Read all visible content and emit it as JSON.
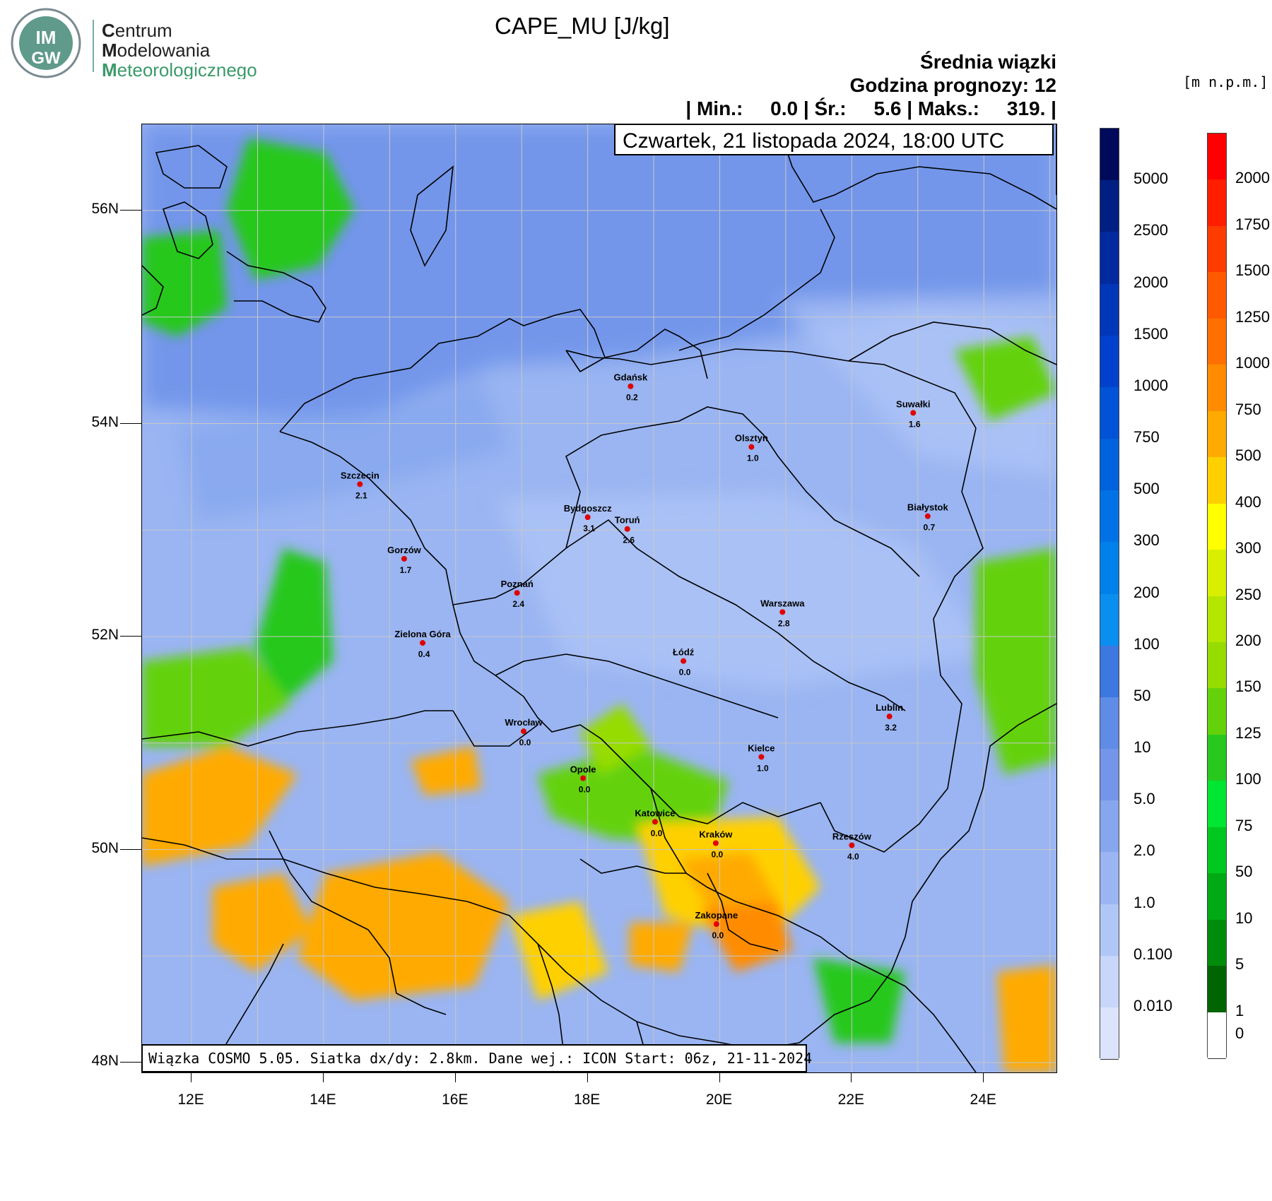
{
  "logo": {
    "line1_initial": "C",
    "line1_rest": "entrum",
    "line2_initial": "M",
    "line2_rest": "odelowania",
    "line3_initial": "M",
    "line3_rest": "eteorologicznego",
    "badge_top": "IM",
    "badge_bottom": "GW"
  },
  "header": {
    "title": "CAPE_MU [J/kg]",
    "subtitle1": "Średnia wiązki",
    "subtitle2": "Godzina prognozy: 12",
    "stats": "| Min.:     0.0 | Śr.:     5.6 | Maks.:     319. |",
    "date": "Czwartek, 21 listopada 2024, 18:00 UTC"
  },
  "footer": "Wiązka COSMO 5.05. Siatka dx/dy: 2.8km. Dane wej.: ICON Start: 06z, 21-11-2024",
  "axes": {
    "lat_labels": [
      "56N",
      "54N",
      "52N",
      "50N",
      "48N"
    ],
    "lon_labels": [
      "12E",
      "14E",
      "16E",
      "18E",
      "20E",
      "22E",
      "24E"
    ],
    "lat_range": [
      48,
      56.8
    ],
    "lon_range": [
      11.25,
      25.1
    ]
  },
  "colorbar_left": {
    "labels": [
      "5000",
      "2500",
      "2000",
      "1500",
      "1000",
      "750",
      "500",
      "300",
      "200",
      "100",
      "50",
      "10",
      "5.0",
      "2.0",
      "1.0",
      "0.100",
      "0.010"
    ],
    "colors": [
      "#000a5a",
      "#001f82",
      "#002a9e",
      "#0036b8",
      "#0040cc",
      "#0052d6",
      "#0062dc",
      "#0072e6",
      "#0080ea",
      "#0a8ef0",
      "#3c78e0",
      "#5f8ce6",
      "#7396ea",
      "#86a6ee",
      "#9ab5f2",
      "#b0c6f6",
      "#c8d6fa",
      "#dbe4fc"
    ]
  },
  "colorbar_right": {
    "unit": "[m n.p.m.]",
    "labels": [
      "2000",
      "1750",
      "1500",
      "1250",
      "1000",
      "750",
      "500",
      "400",
      "300",
      "250",
      "200",
      "150",
      "125",
      "100",
      "75",
      "50",
      "10",
      "5",
      "1",
      "0"
    ],
    "colors": [
      "#ff0000",
      "#ff1e00",
      "#ff3c00",
      "#ff5a00",
      "#ff7000",
      "#ff8c00",
      "#ffaa00",
      "#ffd000",
      "#ffff00",
      "#d8f000",
      "#b4e600",
      "#96dc00",
      "#64d20a",
      "#28c81e",
      "#00e632",
      "#00c81e",
      "#00aa14",
      "#008c0a",
      "#006400",
      "#ffffff"
    ]
  },
  "cities": [
    {
      "name": "Gdańsk",
      "value": "0.2",
      "lon": 18.65,
      "lat": 54.35
    },
    {
      "name": "Olsztyn",
      "value": "1.0",
      "lon": 20.48,
      "lat": 53.78
    },
    {
      "name": "Suwałki",
      "value": "1.6",
      "lon": 22.93,
      "lat": 54.1
    },
    {
      "name": "Szczecin",
      "value": "2.1",
      "lon": 14.55,
      "lat": 53.43
    },
    {
      "name": "Bydgoszcz",
      "value": "3.1",
      "lon": 18.0,
      "lat": 53.12
    },
    {
      "name": "Toruń",
      "value": "2.6",
      "lon": 18.6,
      "lat": 53.01
    },
    {
      "name": "Białystok",
      "value": "0.7",
      "lon": 23.15,
      "lat": 53.13
    },
    {
      "name": "Gorzów",
      "value": "1.7",
      "lon": 15.22,
      "lat": 52.73
    },
    {
      "name": "Poznań",
      "value": "2.4",
      "lon": 16.93,
      "lat": 52.41
    },
    {
      "name": "Warszawa",
      "value": "2.8",
      "lon": 20.95,
      "lat": 52.23
    },
    {
      "name": "Zielona Góra",
      "value": "0.4",
      "lon": 15.5,
      "lat": 51.94
    },
    {
      "name": "Łódź",
      "value": "0.0",
      "lon": 19.45,
      "lat": 51.77
    },
    {
      "name": "Wrocław",
      "value": "0.0",
      "lon": 17.03,
      "lat": 51.11
    },
    {
      "name": "Lublin",
      "value": "3.2",
      "lon": 22.57,
      "lat": 51.25
    },
    {
      "name": "Kielce",
      "value": "1.0",
      "lon": 20.63,
      "lat": 50.87
    },
    {
      "name": "Opole",
      "value": "0.0",
      "lon": 17.93,
      "lat": 50.67
    },
    {
      "name": "Katowice",
      "value": "0.0",
      "lon": 19.02,
      "lat": 50.26
    },
    {
      "name": "Kraków",
      "value": "0.0",
      "lon": 19.94,
      "lat": 50.06
    },
    {
      "name": "Rzeszów",
      "value": "4.0",
      "lon": 22.0,
      "lat": 50.04
    },
    {
      "name": "Zakopane",
      "value": "0.0",
      "lon": 19.95,
      "lat": 49.3
    }
  ]
}
